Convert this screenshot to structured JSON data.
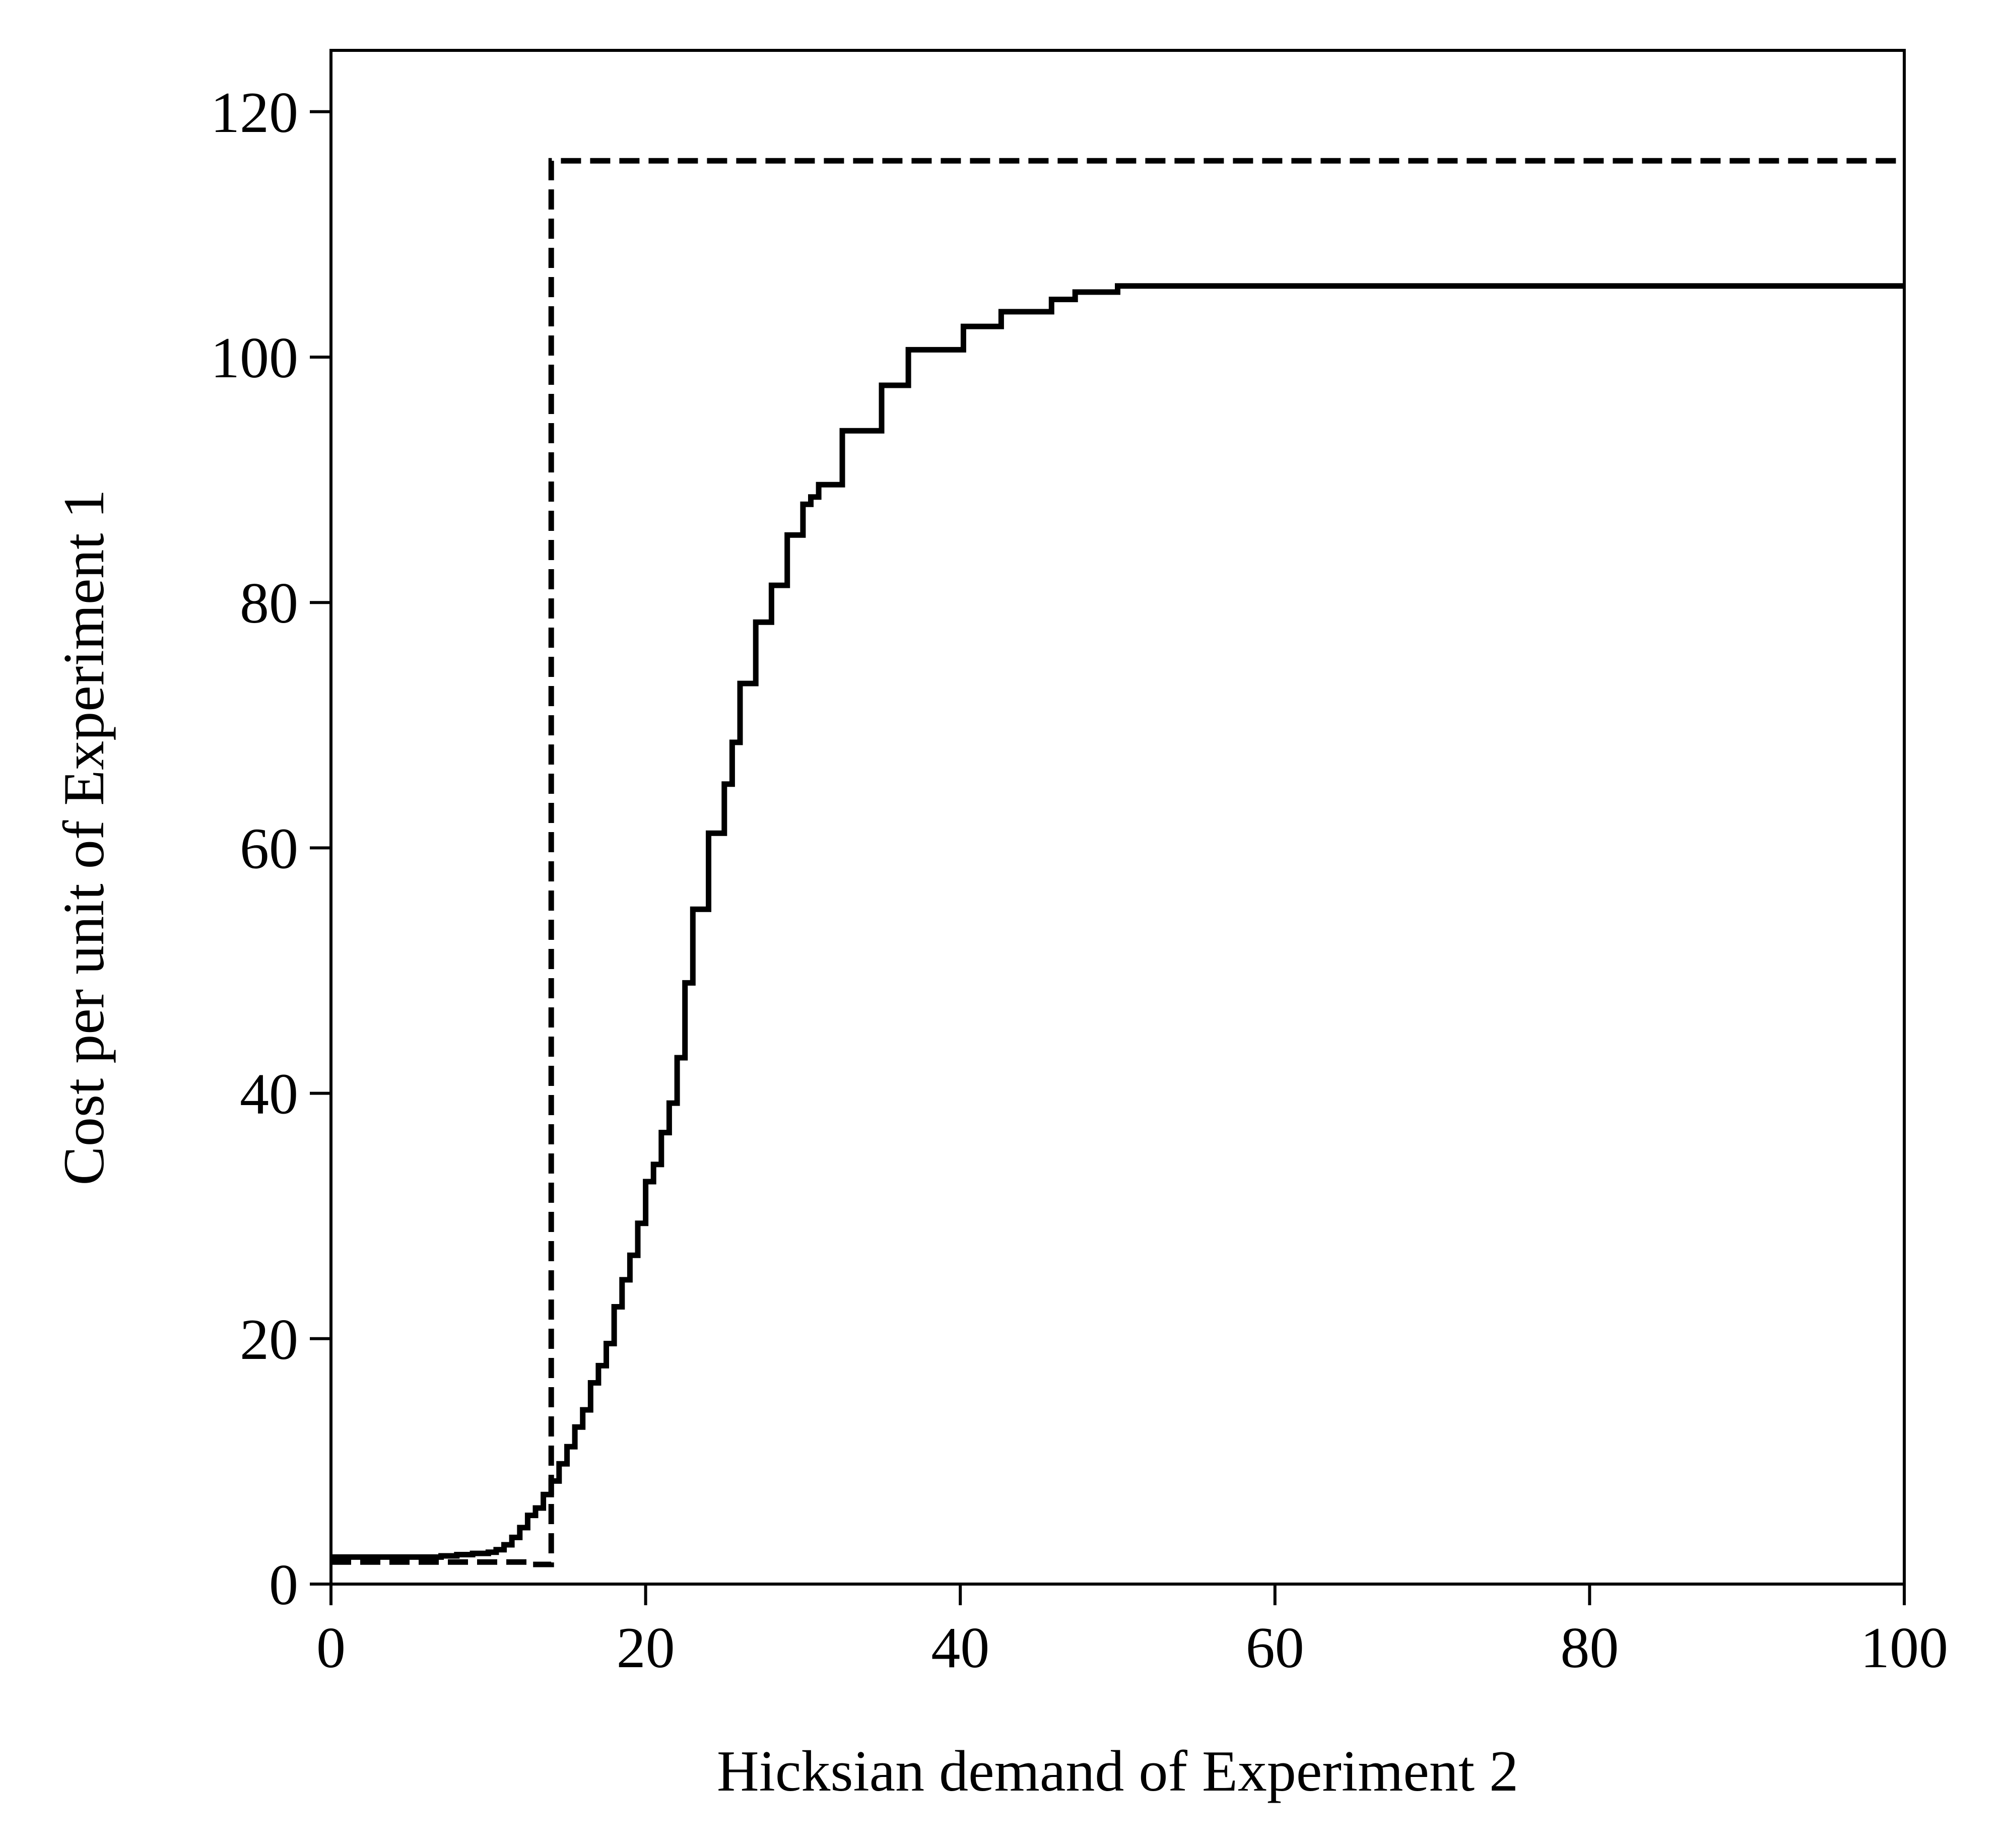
{
  "chart_data": {
    "type": "line",
    "title": "",
    "xlabel": "Hicksian demand of Experiment 2",
    "ylabel": "Cost per unit of Experiment 1",
    "xlim": [
      0,
      100
    ],
    "ylim": [
      0,
      125
    ],
    "xticks": [
      0,
      20,
      40,
      60,
      80,
      100
    ],
    "yticks": [
      0,
      20,
      40,
      60,
      80,
      100,
      120
    ],
    "grid": false,
    "legend": "none",
    "series": [
      {
        "style": "dashed",
        "color": "#000000",
        "step": "post",
        "x": [
          0,
          12.6,
          12.6,
          14.0,
          14.0,
          100
        ],
        "y": [
          1.8,
          1.8,
          1.6,
          1.6,
          116,
          116
        ]
      },
      {
        "style": "solid",
        "color": "#000000",
        "step": "post",
        "x": [
          0,
          7,
          8,
          9,
          10,
          10.5,
          11,
          11.5,
          12,
          12.5,
          13,
          13.5,
          14,
          14.5,
          15,
          15.5,
          16,
          16.5,
          17,
          17.5,
          18,
          18.5,
          19,
          19.5,
          20,
          20.5,
          21,
          21.5,
          22,
          22.5,
          23,
          24,
          25,
          25.5,
          26,
          27,
          28,
          29,
          30,
          30.5,
          31,
          32.5,
          35,
          36.7,
          40.2,
          42.6,
          45.8,
          47.3,
          50,
          100
        ],
        "y": [
          2.2,
          2.3,
          2.4,
          2.5,
          2.6,
          2.8,
          3.2,
          3.8,
          4.6,
          5.6,
          6.2,
          7.3,
          8.4,
          9.8,
          11.2,
          12.8,
          14.2,
          16.4,
          17.8,
          19.6,
          22.6,
          24.8,
          26.8,
          29.4,
          32.8,
          34.2,
          36.8,
          39.2,
          42.9,
          49.0,
          55.0,
          61.2,
          65.2,
          68.6,
          73.4,
          78.4,
          81.4,
          85.5,
          88.0,
          88.6,
          89.6,
          94.0,
          97.7,
          100.6,
          102.5,
          103.7,
          104.7,
          105.3,
          105.8,
          105.8
        ]
      }
    ]
  }
}
